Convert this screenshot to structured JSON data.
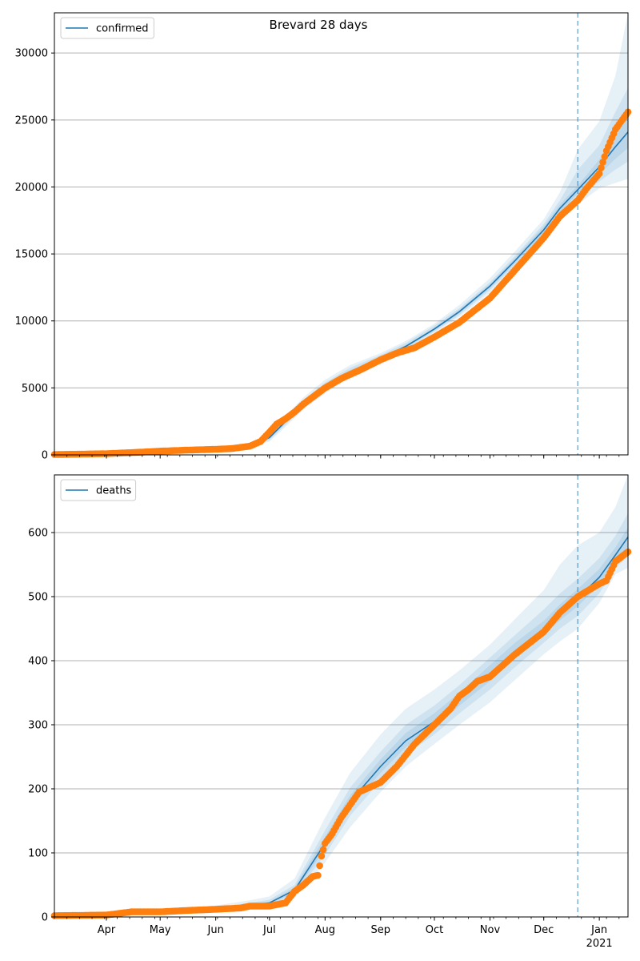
{
  "title": "Brevard 28 days",
  "colors": {
    "fit": "#1f77b4",
    "observed": "#ff7f0e",
    "band": "#1f77b4",
    "grid": "#b0b0b0",
    "forecast_line": "#1f77b4"
  },
  "x_axis": {
    "ticks": [
      {
        "date": "2020-04-01",
        "label": "Apr"
      },
      {
        "date": "2020-05-01",
        "label": "May"
      },
      {
        "date": "2020-06-01",
        "label": "Jun"
      },
      {
        "date": "2020-07-01",
        "label": "Jul"
      },
      {
        "date": "2020-08-01",
        "label": "Aug"
      },
      {
        "date": "2020-09-01",
        "label": "Sep"
      },
      {
        "date": "2020-10-01",
        "label": "Oct"
      },
      {
        "date": "2020-11-01",
        "label": "Nov"
      },
      {
        "date": "2020-12-01",
        "label": "Dec"
      },
      {
        "date": "2021-01-01",
        "label": "Jan"
      }
    ],
    "year_label": "2021",
    "range": [
      "2020-03-03",
      "2021-01-17"
    ],
    "forecast_start": "2020-12-20"
  },
  "chart_data": [
    {
      "type": "line",
      "legend": "confirmed",
      "legend_position": "top-left",
      "grid": "y",
      "ylim": [
        0,
        33000
      ],
      "yticks": [
        0,
        5000,
        10000,
        15000,
        20000,
        25000,
        30000
      ],
      "fit": {
        "x": [
          "2020-03-03",
          "2020-04-01",
          "2020-05-01",
          "2020-06-01",
          "2020-06-20",
          "2020-07-01",
          "2020-07-10",
          "2020-07-20",
          "2020-08-01",
          "2020-08-15",
          "2020-09-01",
          "2020-09-15",
          "2020-10-01",
          "2020-10-15",
          "2020-11-01",
          "2020-11-15",
          "2020-12-01",
          "2020-12-10",
          "2020-12-20",
          "2021-01-01",
          "2021-01-10",
          "2021-01-17"
        ],
        "y": [
          20,
          60,
          200,
          380,
          650,
          1300,
          2500,
          3800,
          5100,
          6200,
          7200,
          8100,
          9400,
          10700,
          12600,
          14500,
          16800,
          18400,
          19800,
          21500,
          23000,
          24100
        ],
        "bands": [
          {
            "lo": [
              10,
              40,
              150,
              300,
              500,
              1000,
              2100,
              3400,
              4600,
              5800,
              6900,
              7800,
              9100,
              10300,
              12100,
              13900,
              16000,
              17500,
              18700,
              19900,
              20300,
              20600
            ],
            "hi": [
              30,
              80,
              250,
              460,
              800,
              1600,
              2900,
              4300,
              5600,
              6700,
              7600,
              8500,
              9800,
              11200,
              13200,
              15200,
              17600,
              19600,
              22800,
              24900,
              28300,
              33000
            ]
          },
          {
            "lo": [
              14,
              48,
              170,
              330,
              560,
              1100,
              2250,
              3550,
              4800,
              5950,
              7000,
              7900,
              9200,
              10450,
              12300,
              14150,
              16300,
              17850,
              19200,
              20400,
              21300,
              21900
            ],
            "hi": [
              26,
              72,
              230,
              430,
              740,
              1500,
              2750,
              4100,
              5400,
              6500,
              7450,
              8350,
              9650,
              10950,
              12900,
              14850,
              17250,
              19000,
              21300,
              23100,
              25600,
              27400
            ]
          },
          {
            "lo": [
              17,
              54,
              185,
              355,
              610,
              1200,
              2380,
              3680,
              4960,
              6080,
              7100,
              8000,
              9300,
              10570,
              12450,
              14320,
              16550,
              18120,
              19500,
              20950,
              22100,
              22900
            ],
            "hi": [
              23,
              66,
              215,
              405,
              690,
              1400,
              2620,
              3920,
              5240,
              6320,
              7300,
              8200,
              9500,
              10830,
              12750,
              14680,
              17050,
              18680,
              20100,
              22050,
              23900,
              25300
            ]
          }
        ]
      },
      "observed": {
        "x": [
          "2020-03-03",
          "2020-03-15",
          "2020-04-01",
          "2020-04-15",
          "2020-05-01",
          "2020-05-15",
          "2020-06-01",
          "2020-06-10",
          "2020-06-20",
          "2020-06-26",
          "2020-07-01",
          "2020-07-05",
          "2020-07-10",
          "2020-07-15",
          "2020-07-20",
          "2020-07-25",
          "2020-08-01",
          "2020-08-10",
          "2020-08-20",
          "2020-09-01",
          "2020-09-10",
          "2020-09-20",
          "2020-10-01",
          "2020-10-15",
          "2020-11-01",
          "2020-11-15",
          "2020-12-01",
          "2020-12-10",
          "2020-12-20",
          "2020-12-25",
          "2021-01-01",
          "2021-01-05",
          "2021-01-10",
          "2021-01-17"
        ],
        "y": [
          30,
          50,
          90,
          170,
          280,
          350,
          420,
          470,
          650,
          1000,
          1700,
          2300,
          2700,
          3200,
          3800,
          4300,
          5000,
          5700,
          6300,
          7100,
          7600,
          8000,
          8800,
          9900,
          11700,
          13800,
          16200,
          17800,
          19000,
          19900,
          21000,
          22700,
          24300,
          25600
        ]
      }
    },
    {
      "type": "line",
      "legend": "deaths",
      "legend_position": "top-left",
      "grid": "y",
      "ylim": [
        0,
        690
      ],
      "yticks": [
        0,
        100,
        200,
        300,
        400,
        500,
        600
      ],
      "fit": {
        "x": [
          "2020-03-03",
          "2020-04-01",
          "2020-05-01",
          "2020-06-01",
          "2020-06-20",
          "2020-07-01",
          "2020-07-15",
          "2020-08-01",
          "2020-08-15",
          "2020-09-01",
          "2020-09-15",
          "2020-10-01",
          "2020-10-15",
          "2020-11-01",
          "2020-11-15",
          "2020-12-01",
          "2020-12-10",
          "2020-12-20",
          "2021-01-01",
          "2021-01-10",
          "2021-01-17"
        ],
        "y": [
          1,
          3,
          7,
          12,
          18,
          22,
          42,
          115,
          180,
          235,
          275,
          305,
          340,
          380,
          415,
          450,
          475,
          498,
          530,
          565,
          593
        ],
        "bands": [
          {
            "lo": [
              0,
              1,
              4,
              8,
              13,
              15,
              30,
              85,
              140,
              195,
              235,
              270,
              300,
              335,
              370,
              410,
              430,
              450,
              490,
              535,
              545
            ],
            "hi": [
              2,
              5,
              10,
              18,
              26,
              32,
              60,
              155,
              225,
              285,
              325,
              355,
              385,
              425,
              465,
              510,
              550,
              580,
              600,
              640,
              690
            ]
          },
          {
            "lo": [
              0,
              2,
              5,
              10,
              15,
              18,
              35,
              97,
              158,
              213,
              253,
              285,
              318,
              355,
              390,
              428,
              450,
              470,
              505,
              545,
              562
            ],
            "hi": [
              2,
              4,
              9,
              15,
              22,
              27,
              50,
              135,
              202,
              258,
              300,
              330,
              362,
              405,
              440,
              480,
              505,
              528,
              560,
              595,
              630
            ]
          },
          {
            "lo": [
              1,
              2,
              6,
              11,
              16,
              20,
              38,
              106,
              170,
              225,
              265,
              295,
              330,
              368,
              403,
              440,
              463,
              485,
              518,
              555,
              578
            ],
            "hi": [
              1,
              4,
              8,
              13,
              20,
              24,
              46,
              125,
              190,
              246,
              287,
              318,
              350,
              393,
              428,
              462,
              488,
              512,
              543,
              577,
              608
            ]
          }
        ]
      },
      "observed": {
        "x": [
          "2020-03-03",
          "2020-04-01",
          "2020-04-15",
          "2020-05-01",
          "2020-05-15",
          "2020-06-01",
          "2020-06-15",
          "2020-06-20",
          "2020-07-01",
          "2020-07-10",
          "2020-07-15",
          "2020-07-20",
          "2020-07-25",
          "2020-07-28",
          "2020-07-30",
          "2020-08-01",
          "2020-08-05",
          "2020-08-10",
          "2020-08-15",
          "2020-08-20",
          "2020-09-01",
          "2020-09-10",
          "2020-09-20",
          "2020-10-01",
          "2020-10-10",
          "2020-10-15",
          "2020-10-20",
          "2020-10-25",
          "2020-11-01",
          "2020-11-15",
          "2020-12-01",
          "2020-12-10",
          "2020-12-20",
          "2021-01-01",
          "2021-01-05",
          "2021-01-10",
          "2021-01-17"
        ],
        "y": [
          2,
          3,
          8,
          8,
          10,
          12,
          14,
          17,
          17,
          22,
          40,
          50,
          63,
          65,
          95,
          115,
          130,
          155,
          175,
          195,
          210,
          235,
          270,
          300,
          325,
          345,
          355,
          368,
          375,
          410,
          445,
          475,
          500,
          520,
          525,
          555,
          570
        ]
      }
    }
  ]
}
